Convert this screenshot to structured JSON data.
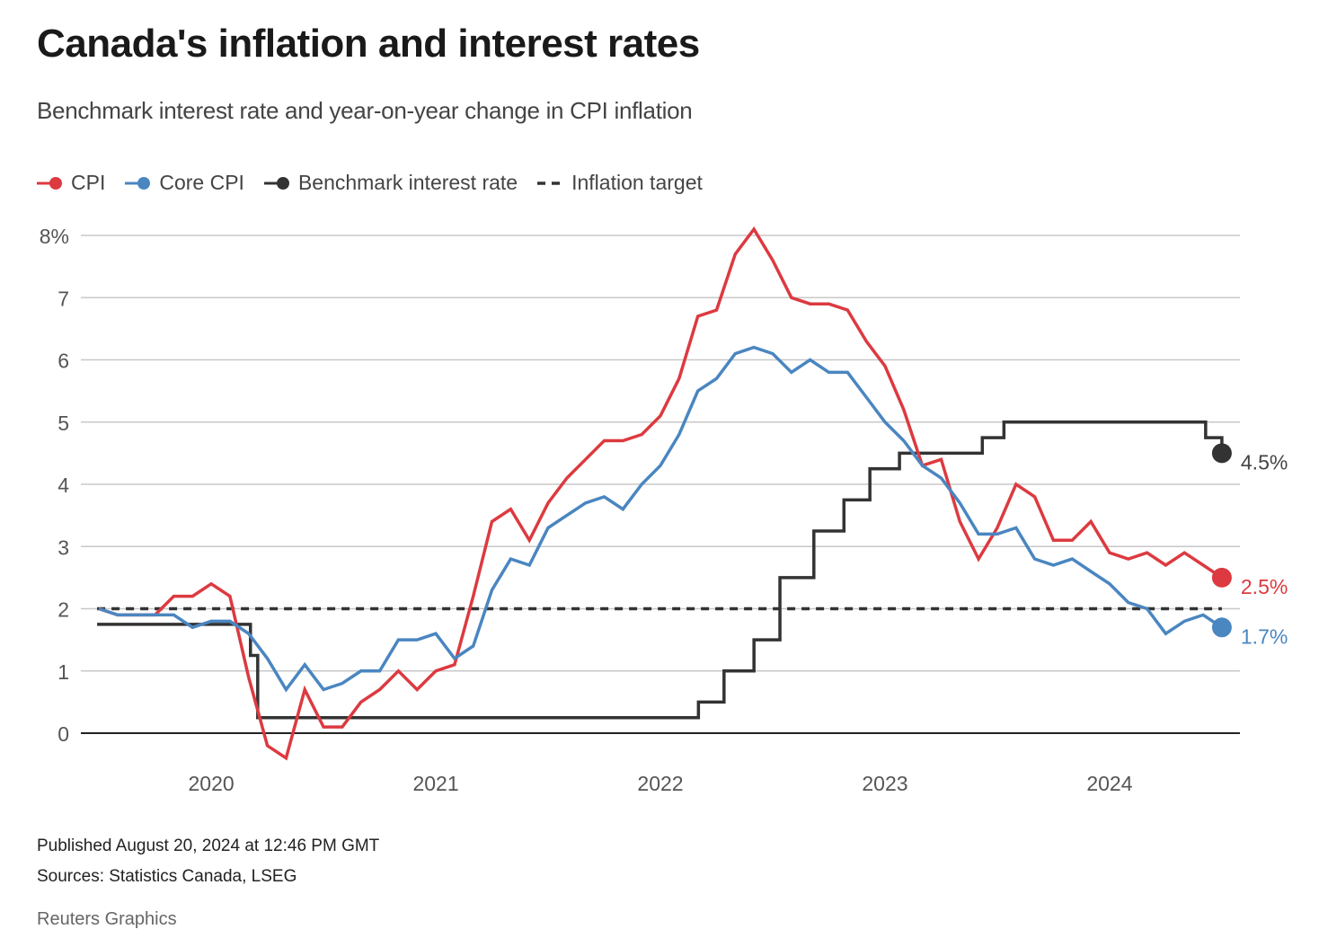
{
  "header": {
    "title": "Canada's inflation and interest rates",
    "subtitle": "Benchmark interest rate and year-on-year change in CPI inflation"
  },
  "legend": [
    {
      "label": "CPI",
      "color": "#dc3a40",
      "style": "line-dot"
    },
    {
      "label": "Core CPI",
      "color": "#4a86c0",
      "style": "line-dot"
    },
    {
      "label": "Benchmark interest rate",
      "color": "#333333",
      "style": "line-dot"
    },
    {
      "label": "Inflation target",
      "color": "#333333",
      "style": "dashed"
    }
  ],
  "footer": {
    "published": "Published August 20, 2024 at 12:46 PM GMT",
    "sources": "Sources: Statistics Canada, LSEG",
    "credit": "Reuters Graphics"
  },
  "chart_data": {
    "type": "line",
    "title": "Canada's inflation and interest rates",
    "subtitle": "Benchmark interest rate and year-on-year change in CPI inflation",
    "xlabel": "",
    "ylabel": "",
    "ylim": [
      0,
      8
    ],
    "y_ticks": [
      0,
      1,
      2,
      3,
      4,
      5,
      6,
      7,
      8
    ],
    "y_tick_labels": [
      "0",
      "1",
      "2",
      "3",
      "4",
      "5",
      "6",
      "7",
      "8%"
    ],
    "x_ticks": [
      "2020",
      "2021",
      "2022",
      "2023",
      "2024"
    ],
    "x_range": [
      "2019-07",
      "2024-07"
    ],
    "grid": true,
    "legend_position": "top-left",
    "months": [
      "2019-07",
      "2019-08",
      "2019-09",
      "2019-10",
      "2019-11",
      "2019-12",
      "2020-01",
      "2020-02",
      "2020-03",
      "2020-04",
      "2020-05",
      "2020-06",
      "2020-07",
      "2020-08",
      "2020-09",
      "2020-10",
      "2020-11",
      "2020-12",
      "2021-01",
      "2021-02",
      "2021-03",
      "2021-04",
      "2021-05",
      "2021-06",
      "2021-07",
      "2021-08",
      "2021-09",
      "2021-10",
      "2021-11",
      "2021-12",
      "2022-01",
      "2022-02",
      "2022-03",
      "2022-04",
      "2022-05",
      "2022-06",
      "2022-07",
      "2022-08",
      "2022-09",
      "2022-10",
      "2022-11",
      "2022-12",
      "2023-01",
      "2023-02",
      "2023-03",
      "2023-04",
      "2023-05",
      "2023-06",
      "2023-07",
      "2023-08",
      "2023-09",
      "2023-10",
      "2023-11",
      "2023-12",
      "2024-01",
      "2024-02",
      "2024-03",
      "2024-04",
      "2024-05",
      "2024-06",
      "2024-07"
    ],
    "series": [
      {
        "name": "CPI",
        "color": "#dc3a40",
        "end_label": "2.5%",
        "values": [
          2.0,
          1.9,
          1.9,
          1.9,
          2.2,
          2.2,
          2.4,
          2.2,
          0.9,
          -0.2,
          -0.4,
          0.7,
          0.1,
          0.1,
          0.5,
          0.7,
          1.0,
          0.7,
          1.0,
          1.1,
          2.2,
          3.4,
          3.6,
          3.1,
          3.7,
          4.1,
          4.4,
          4.7,
          4.7,
          4.8,
          5.1,
          5.7,
          6.7,
          6.8,
          7.7,
          8.1,
          7.6,
          7.0,
          6.9,
          6.9,
          6.8,
          6.3,
          5.9,
          5.2,
          4.3,
          4.4,
          3.4,
          2.8,
          3.3,
          4.0,
          3.8,
          3.1,
          3.1,
          3.4,
          2.9,
          2.8,
          2.9,
          2.7,
          2.9,
          2.7,
          2.5
        ]
      },
      {
        "name": "Core CPI",
        "color": "#4a86c0",
        "end_label": "1.7%",
        "values": [
          2.0,
          1.9,
          1.9,
          1.9,
          1.9,
          1.7,
          1.8,
          1.8,
          1.6,
          1.2,
          0.7,
          1.1,
          0.7,
          0.8,
          1.0,
          1.0,
          1.5,
          1.5,
          1.6,
          1.2,
          1.4,
          2.3,
          2.8,
          2.7,
          3.3,
          3.5,
          3.7,
          3.8,
          3.6,
          4.0,
          4.3,
          4.8,
          5.5,
          5.7,
          6.1,
          6.2,
          6.1,
          5.8,
          6.0,
          5.8,
          5.8,
          5.4,
          5.0,
          4.7,
          4.3,
          4.1,
          3.7,
          3.2,
          3.2,
          3.3,
          2.8,
          2.7,
          2.8,
          2.6,
          2.4,
          2.1,
          2.0,
          1.6,
          1.8,
          1.9,
          1.7
        ]
      },
      {
        "name": "Benchmark interest rate",
        "color": "#333333",
        "end_label": "4.5%",
        "step": true,
        "steps": [
          {
            "date": "2019-07-01",
            "value": 1.75
          },
          {
            "date": "2020-03-04",
            "value": 1.25
          },
          {
            "date": "2020-03-16",
            "value": 0.25
          },
          {
            "date": "2022-03-02",
            "value": 0.5
          },
          {
            "date": "2022-04-13",
            "value": 1.0
          },
          {
            "date": "2022-06-01",
            "value": 1.5
          },
          {
            "date": "2022-07-13",
            "value": 2.5
          },
          {
            "date": "2022-09-07",
            "value": 3.25
          },
          {
            "date": "2022-10-26",
            "value": 3.75
          },
          {
            "date": "2022-12-07",
            "value": 4.25
          },
          {
            "date": "2023-01-25",
            "value": 4.5
          },
          {
            "date": "2023-06-07",
            "value": 4.75
          },
          {
            "date": "2023-07-12",
            "value": 5.0
          },
          {
            "date": "2024-06-05",
            "value": 4.75
          },
          {
            "date": "2024-07-24",
            "value": 4.5
          },
          {
            "date": "2024-07-31",
            "value": 4.5
          }
        ]
      },
      {
        "name": "Inflation target",
        "color": "#333333",
        "dashed": true,
        "value": 2.0
      }
    ]
  }
}
